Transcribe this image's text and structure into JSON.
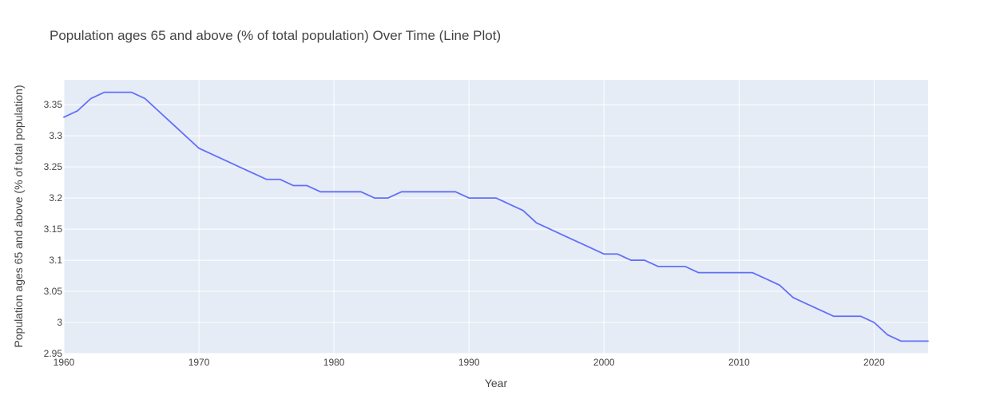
{
  "chart_data": {
    "type": "line",
    "title": "Population ages 65 and above (% of total population) Over Time (Line Plot)",
    "xlabel": "Year",
    "ylabel": "Population ages 65 and above (% of total population)",
    "xlim": [
      1960,
      2024
    ],
    "ylim": [
      2.95,
      3.39
    ],
    "xticks": [
      1960,
      1970,
      1980,
      1990,
      2000,
      2010,
      2020
    ],
    "xtick_labels": [
      "1960",
      "1970",
      "1980",
      "1990",
      "2000",
      "2010",
      "2020"
    ],
    "yticks": [
      2.95,
      3.0,
      3.05,
      3.1,
      3.15,
      3.2,
      3.25,
      3.3,
      3.35
    ],
    "ytick_labels": [
      "2.95",
      "3",
      "3.05",
      "3.1",
      "3.15",
      "3.2",
      "3.25",
      "3.3",
      "3.35"
    ],
    "grid": true,
    "colors": {
      "plot_background": "#e5ecf6",
      "line": "#636efa",
      "grid": "#ffffff"
    },
    "series": [
      {
        "x": [
          1960,
          1961,
          1962,
          1963,
          1964,
          1965,
          1966,
          1967,
          1968,
          1969,
          1970,
          1971,
          1972,
          1973,
          1974,
          1975,
          1976,
          1977,
          1978,
          1979,
          1980,
          1981,
          1982,
          1983,
          1984,
          1985,
          1986,
          1987,
          1988,
          1989,
          1990,
          1991,
          1992,
          1993,
          1994,
          1995,
          1996,
          1997,
          1998,
          1999,
          2000,
          2001,
          2002,
          2003,
          2004,
          2005,
          2006,
          2007,
          2008,
          2009,
          2010,
          2011,
          2012,
          2013,
          2014,
          2015,
          2016,
          2017,
          2018,
          2019,
          2020,
          2021,
          2022,
          2023,
          2024
        ],
        "y": [
          3.33,
          3.34,
          3.36,
          3.37,
          3.37,
          3.37,
          3.36,
          3.34,
          3.32,
          3.3,
          3.28,
          3.27,
          3.26,
          3.25,
          3.24,
          3.23,
          3.23,
          3.22,
          3.22,
          3.21,
          3.21,
          3.21,
          3.21,
          3.2,
          3.2,
          3.21,
          3.21,
          3.21,
          3.21,
          3.21,
          3.2,
          3.2,
          3.2,
          3.19,
          3.18,
          3.16,
          3.15,
          3.14,
          3.13,
          3.12,
          3.11,
          3.11,
          3.1,
          3.1,
          3.09,
          3.09,
          3.09,
          3.08,
          3.08,
          3.08,
          3.08,
          3.08,
          3.07,
          3.06,
          3.04,
          3.03,
          3.02,
          3.01,
          3.01,
          3.01,
          3.0,
          2.98,
          2.97,
          2.97,
          2.97
        ]
      }
    ]
  }
}
